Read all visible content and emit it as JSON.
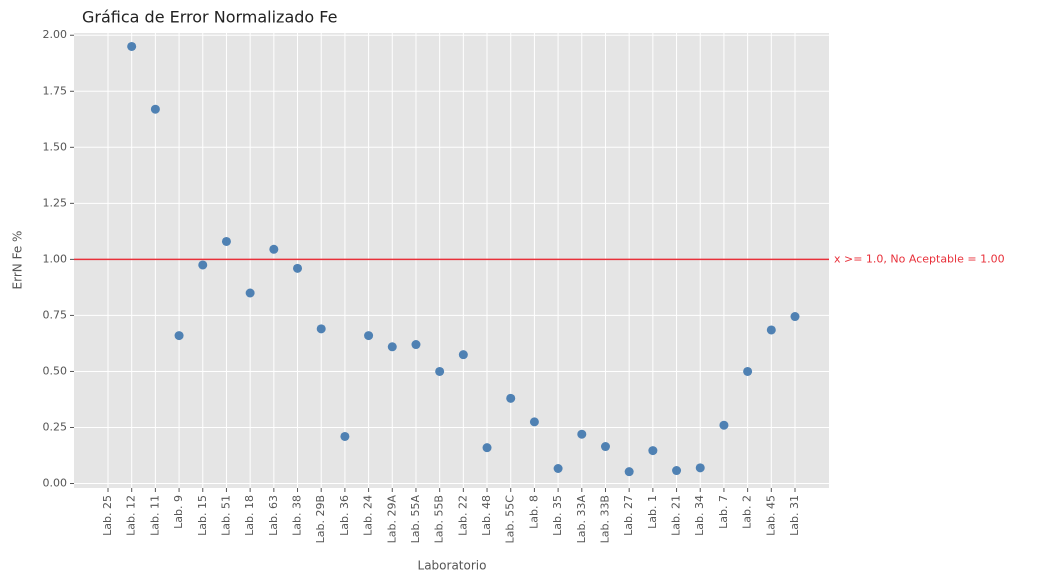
{
  "chart_data": {
    "type": "scatter",
    "title": "Gráfica de Error Normalizado Fe",
    "x_label": "Laboratorio",
    "y_label": "ErrN Fe %",
    "categories": [
      "Lab. 25",
      "Lab. 12",
      "Lab. 11",
      "Lab. 9",
      "Lab. 15",
      "Lab. 51",
      "Lab. 18",
      "Lab. 63",
      "Lab. 38",
      "Lab. 29B",
      "Lab. 36",
      "Lab. 24",
      "Lab. 29A",
      "Lab. 55A",
      "Lab. 55B",
      "Lab. 22",
      "Lab. 48",
      "Lab. 55C",
      "Lab. 8",
      "Lab. 35",
      "Lab. 33A",
      "Lab. 33B",
      "Lab. 27",
      "Lab. 1",
      "Lab. 21",
      "Lab. 34",
      "Lab. 7",
      "Lab. 2",
      "Lab. 45",
      "Lab. 31"
    ],
    "values": [
      null,
      1.95,
      1.67,
      0.66,
      0.975,
      1.08,
      0.85,
      1.045,
      0.96,
      0.69,
      0.21,
      0.66,
      0.61,
      0.62,
      0.5,
      0.575,
      0.16,
      0.38,
      0.275,
      0.067,
      0.22,
      0.165,
      0.053,
      0.147,
      0.058,
      0.07,
      0.26,
      0.5,
      0.685,
      0.745
    ],
    "color": "#4f81b3",
    "ylim": [
      -0.02,
      2.01
    ],
    "yticks": [
      {
        "value": 0,
        "label": "0.00"
      },
      {
        "value": 0.25,
        "label": "0.25"
      },
      {
        "value": 0.5,
        "label": "0.50"
      },
      {
        "value": 0.75,
        "label": "0.75"
      },
      {
        "value": 1,
        "label": "1.00"
      },
      {
        "value": 1.25,
        "label": "1.25"
      },
      {
        "value": 1.5,
        "label": "1.50"
      },
      {
        "value": 1.75,
        "label": "1.75"
      },
      {
        "value": 2,
        "label": "2.00"
      }
    ],
    "grid": true,
    "reference_line": {
      "value": 1,
      "label": "x >= 1.0, No Aceptable = 1.00",
      "color": "#e8303a"
    }
  }
}
